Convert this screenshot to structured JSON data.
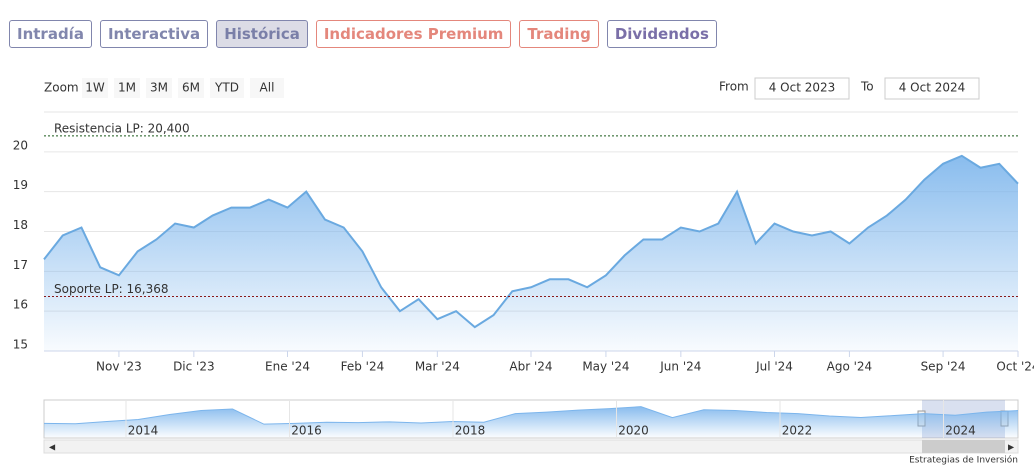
{
  "tabs": [
    "Intradía",
    "Interactiva",
    "Histórica",
    "Indicadores Premium",
    "Trading",
    "Dividendos"
  ],
  "zoom": {
    "label": "Zoom",
    "buttons": [
      "1W",
      "1M",
      "3M",
      "6M",
      "YTD",
      "All"
    ]
  },
  "range": {
    "from_label": "From",
    "from": "4 Oct 2023",
    "to_label": "To",
    "to": "4 Oct 2024"
  },
  "credits": "Estrategias de Inversión",
  "chart_data": {
    "type": "area",
    "color": "#6aa9e0",
    "categories": [
      null,
      null,
      null,
      null,
      "Nov '23",
      null,
      null,
      null,
      "Dic '23",
      null,
      null,
      null,
      null,
      "Ene '24",
      null,
      null,
      null,
      "Feb '24",
      null,
      null,
      null,
      "Mar '24",
      null,
      null,
      null,
      null,
      "Abr '24",
      null,
      null,
      null,
      "May '24",
      null,
      null,
      null,
      "Jun '24",
      null,
      null,
      null,
      null,
      "Jul '24",
      null,
      null,
      null,
      "Ago '24",
      null,
      null,
      null,
      null,
      "Sep '24",
      null,
      null,
      null,
      "Oct '24"
    ],
    "values": [
      17.3,
      17.9,
      18.1,
      17.1,
      16.9,
      17.5,
      17.8,
      18.2,
      18.1,
      18.4,
      18.6,
      18.6,
      18.8,
      18.6,
      19.0,
      18.3,
      18.1,
      17.5,
      16.6,
      16.0,
      16.3,
      15.8,
      16.0,
      15.6,
      15.9,
      16.5,
      16.6,
      16.8,
      16.8,
      16.6,
      16.9,
      17.4,
      17.8,
      17.8,
      18.1,
      18.0,
      18.2,
      19.0,
      17.7,
      18.2,
      18.0,
      17.9,
      18.0,
      17.7,
      18.1,
      18.4,
      18.8,
      19.3,
      19.7,
      19.9,
      19.6,
      19.7,
      19.2
    ],
    "ylim": [
      15,
      21
    ],
    "yticks": [
      15,
      16,
      17,
      18,
      19,
      20
    ],
    "grid": true,
    "annotations": [
      {
        "label": "Resistencia LP: 20,400",
        "value": 20.4,
        "color": "#1a5a1a"
      },
      {
        "label": "Soporte LP: 16,368",
        "value": 16.368,
        "color": "#8a1a1a"
      }
    ],
    "navigator": {
      "years": [
        "2014",
        "2016",
        "2018",
        "2020",
        "2022",
        "2024"
      ],
      "values": [
        13.5,
        13.4,
        14.0,
        14.5,
        15.8,
        16.8,
        17.2,
        13.3,
        13.5,
        13.8,
        13.7,
        13.9,
        13.6,
        14.0,
        13.8,
        16.0,
        16.4,
        16.9,
        17.3,
        17.8,
        15.0,
        17.0,
        16.8,
        16.3,
        16.0,
        15.4,
        15.0,
        15.5,
        16.0,
        15.6,
        16.4,
        16.8
      ],
      "ylim": [
        10,
        19
      ]
    }
  }
}
